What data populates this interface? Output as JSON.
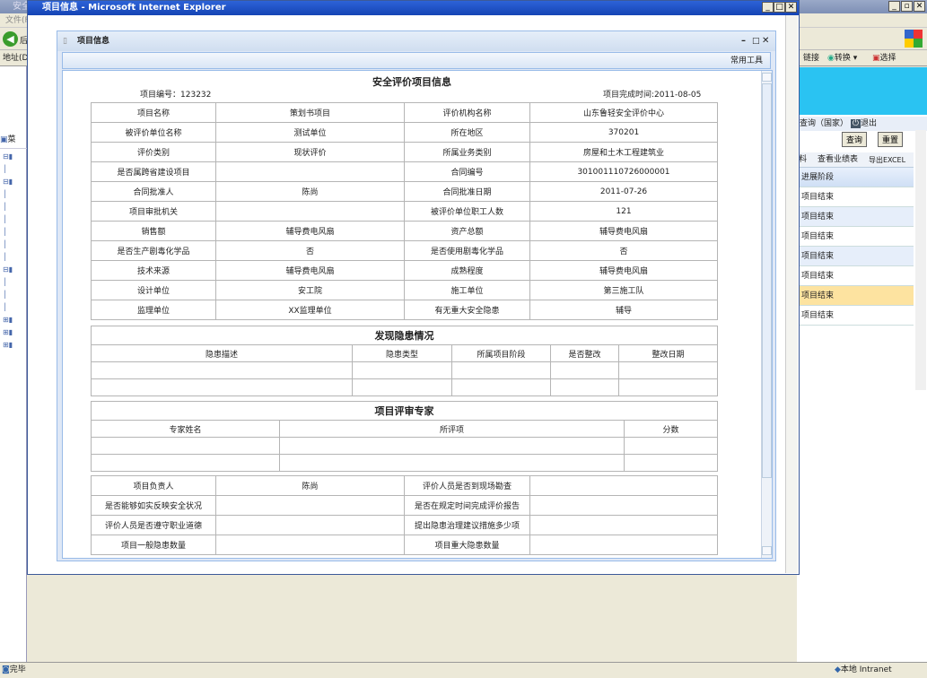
{
  "background_window": {
    "title": "安全",
    "menu": "文件(F)",
    "back": "后",
    "address_label": "地址(D)",
    "links": "链接",
    "convert": "转换",
    "select": "选择",
    "query_country": "查询（国家）",
    "logout": "退出",
    "query_btn": "查询",
    "reset_btn": "重置",
    "tabs": [
      "料",
      "查看业绩表",
      "导出EXCEL"
    ],
    "column_header": "进展阶段",
    "rows": [
      "项目结束",
      "项目结束",
      "项目结束",
      "项目结束",
      "项目结束",
      "项目结束",
      "项目结束"
    ],
    "tree_root": "菜",
    "highlight_color": "#fde3a0"
  },
  "popup": {
    "title": "项目信息 - Microsoft Internet Explorer",
    "dialog_title": "项目信息",
    "toolbar_label": "常用工具",
    "page_title": "安全评价项目信息",
    "project_no_label": "项目编号：",
    "project_no": "123232",
    "complete_label": "项目完成时间:",
    "complete_date": "2011-08-05",
    "info_rows": [
      [
        "项目名称",
        "策划书项目",
        "评价机构名称",
        "山东鲁轻安全评价中心"
      ],
      [
        "被评价单位名称",
        "测试单位",
        "所在地区",
        "370201"
      ],
      [
        "评价类别",
        "现状评价",
        "所属业务类别",
        "房屋和土木工程建筑业"
      ],
      [
        "是否属跨省建设项目",
        "",
        "合同编号",
        "301001110726000001"
      ],
      [
        "合同批准人",
        "陈尚",
        "合同批准日期",
        "2011-07-26"
      ],
      [
        "项目审批机关",
        "",
        "被评价单位职工人数",
        "121"
      ],
      [
        "销售额",
        "辅导费电风扇",
        "资产总额",
        "辅导费电风扇"
      ],
      [
        "是否生产剧毒化学品",
        "否",
        "是否使用剧毒化学品",
        "否"
      ],
      [
        "技术来源",
        "辅导费电风扇",
        "成熟程度",
        "辅导费电风扇"
      ],
      [
        "设计单位",
        "安工院",
        "施工单位",
        "第三施工队"
      ],
      [
        "监理单位",
        "XX监理单位",
        "有无重大安全隐患",
        "辅导"
      ]
    ],
    "hazard": {
      "title": "发现隐患情况",
      "headers": [
        "隐患描述",
        "隐患类型",
        "所属项目阶段",
        "是否整改",
        "整改日期"
      ]
    },
    "experts": {
      "title": "项目评审专家",
      "headers": [
        "专家姓名",
        "所评项",
        "分数"
      ]
    },
    "summary_rows": [
      [
        "项目负责人",
        "陈尚",
        "评价人员是否到现场勘查",
        ""
      ],
      [
        "是否能够如实反映安全状况",
        "",
        "是否在规定时间完成评价报告",
        ""
      ],
      [
        "评价人员是否遵守职业道德",
        "",
        "提出隐患治理建议措施多少项",
        ""
      ],
      [
        "项目一般隐患数量",
        "",
        "项目重大隐患数量",
        ""
      ]
    ]
  },
  "status": {
    "text": "完毕",
    "zone": "本地 Intranet"
  }
}
